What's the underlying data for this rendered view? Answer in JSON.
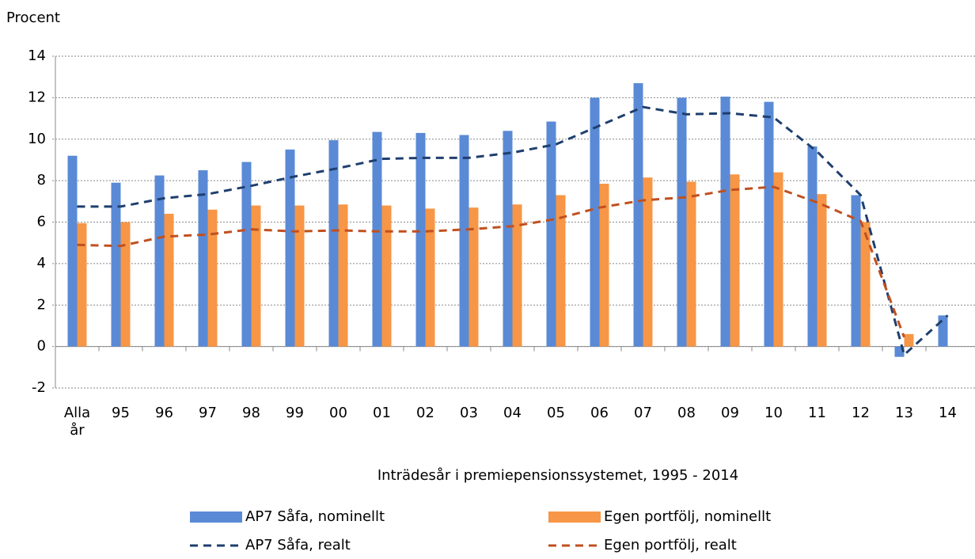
{
  "chart_data": {
    "type": "bar_line",
    "y_label": "Procent",
    "x_label": "Inträdesår i premiepensionssystemet, 1995 - 2014",
    "categories": [
      "Alla år",
      "95",
      "96",
      "97",
      "98",
      "99",
      "00",
      "01",
      "02",
      "03",
      "04",
      "05",
      "06",
      "07",
      "08",
      "09",
      "10",
      "11",
      "12",
      "13",
      "14"
    ],
    "ylim": [
      -2,
      14
    ],
    "yticks": [
      -2,
      0,
      2,
      4,
      6,
      8,
      10,
      12,
      14
    ],
    "grid": true,
    "legend": "bottom",
    "series": [
      {
        "name": "AP7 Såfa, nominellt",
        "kind": "bar",
        "color": "#5a8ad6",
        "values": [
          9.2,
          7.9,
          8.25,
          8.5,
          8.9,
          9.5,
          9.95,
          10.35,
          10.3,
          10.2,
          10.4,
          10.85,
          12.0,
          12.7,
          12.0,
          12.05,
          11.8,
          9.65,
          7.3,
          -0.5,
          1.5
        ]
      },
      {
        "name": "Egen portfölj, nominellt",
        "kind": "bar",
        "color": "#f79646",
        "values": [
          5.95,
          6.0,
          6.4,
          6.6,
          6.8,
          6.8,
          6.85,
          6.8,
          6.65,
          6.7,
          6.85,
          7.3,
          7.85,
          8.15,
          7.95,
          8.3,
          8.4,
          7.35,
          6.0,
          0.6,
          null
        ]
      },
      {
        "name": "AP7 Såfa, realt",
        "kind": "dashed-line",
        "color": "#1f3f6e",
        "values": [
          6.75,
          6.75,
          7.15,
          7.35,
          7.75,
          8.2,
          8.6,
          9.05,
          9.1,
          9.1,
          9.35,
          9.75,
          10.65,
          11.55,
          11.2,
          11.25,
          11.05,
          9.4,
          7.3,
          -0.4,
          1.5
        ]
      },
      {
        "name": "Egen portfölj, realt",
        "kind": "dashed-line",
        "color": "#c0501f",
        "values": [
          4.9,
          4.85,
          5.3,
          5.4,
          5.65,
          5.55,
          5.6,
          5.55,
          5.55,
          5.65,
          5.8,
          6.15,
          6.7,
          7.05,
          7.2,
          7.55,
          7.7,
          6.95,
          6.05,
          0.45,
          null
        ]
      }
    ]
  }
}
